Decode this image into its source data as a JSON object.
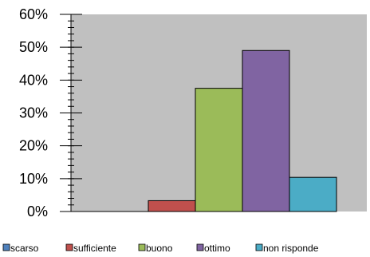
{
  "chart_data": {
    "type": "bar",
    "title": "",
    "xlabel": "",
    "ylabel": "",
    "ylim": [
      0,
      60
    ],
    "y_ticks": [
      "0%",
      "10%",
      "20%",
      "30%",
      "40%",
      "50%",
      "60%"
    ],
    "y_tick_values": [
      0,
      10,
      20,
      30,
      40,
      50,
      60
    ],
    "y_minor_step": 2,
    "plot_background": "#c0c0c0",
    "grid": false,
    "legend_position": "bottom",
    "series": [
      {
        "name": "scarso",
        "value": 0,
        "color": "#4f81bd"
      },
      {
        "name": "sufficiente",
        "value": 3.3,
        "color": "#c0504d"
      },
      {
        "name": "buono",
        "value": 37.5,
        "color": "#9bbb59"
      },
      {
        "name": "ottimo",
        "value": 49,
        "color": "#8064a2"
      },
      {
        "name": "non risponde",
        "value": 10.4,
        "color": "#4bacc6"
      }
    ]
  }
}
